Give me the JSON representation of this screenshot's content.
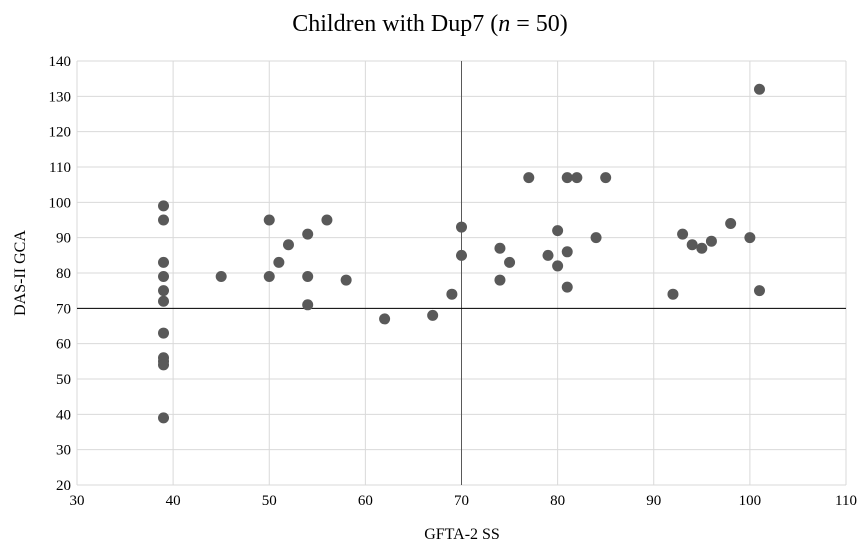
{
  "chart_data": {
    "type": "scatter",
    "title_parts": {
      "prefix": "Children with Dup7 (",
      "italic": "n",
      "suffix": " = 50)"
    },
    "xlabel": "GFTA-2 SS",
    "ylabel": "DAS-II GCA",
    "xlim": [
      30,
      110
    ],
    "ylim": [
      20,
      140
    ],
    "xticks": [
      30,
      40,
      50,
      60,
      70,
      80,
      90,
      100,
      110
    ],
    "yticks": [
      20,
      30,
      40,
      50,
      60,
      70,
      80,
      90,
      100,
      110,
      120,
      130,
      140
    ],
    "grid": true,
    "reference_lines": {
      "x": 70,
      "y": 70
    },
    "colors": {
      "marker": "#595959",
      "grid": "#d9d9d9",
      "vline": "#595959",
      "hline": "#000000"
    },
    "series": [
      {
        "points": [
          [
            39,
            99
          ],
          [
            39,
            95
          ],
          [
            39,
            83
          ],
          [
            39,
            79
          ],
          [
            39,
            75
          ],
          [
            39,
            72
          ],
          [
            39,
            63
          ],
          [
            39,
            56
          ],
          [
            39,
            55
          ],
          [
            39,
            54
          ],
          [
            39,
            39
          ],
          [
            45,
            79
          ],
          [
            50,
            95
          ],
          [
            50,
            79
          ],
          [
            51,
            83
          ],
          [
            52,
            88
          ],
          [
            54,
            91
          ],
          [
            54,
            79
          ],
          [
            54,
            71
          ],
          [
            56,
            95
          ],
          [
            58,
            78
          ],
          [
            62,
            67
          ],
          [
            67,
            68
          ],
          [
            69,
            74
          ],
          [
            70,
            93
          ],
          [
            70,
            85
          ],
          [
            74,
            87
          ],
          [
            74,
            78
          ],
          [
            75,
            83
          ],
          [
            77,
            107
          ],
          [
            79,
            85
          ],
          [
            80,
            92
          ],
          [
            80,
            82
          ],
          [
            81,
            107
          ],
          [
            81,
            86
          ],
          [
            81,
            76
          ],
          [
            82,
            107
          ],
          [
            84,
            90
          ],
          [
            85,
            107
          ],
          [
            92,
            74
          ],
          [
            93,
            91
          ],
          [
            94,
            88
          ],
          [
            95,
            87
          ],
          [
            96,
            89
          ],
          [
            98,
            94
          ],
          [
            100,
            90
          ],
          [
            101,
            132
          ],
          [
            101,
            75
          ]
        ]
      }
    ]
  }
}
